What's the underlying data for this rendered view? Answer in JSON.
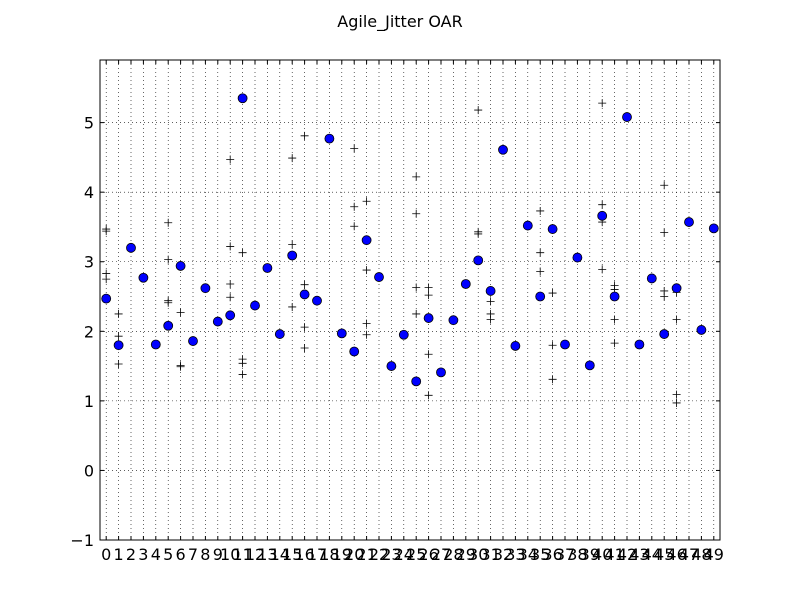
{
  "chart_data": {
    "type": "scatter",
    "title": "Agile_Jitter OAR",
    "xlabel": "",
    "ylabel": "",
    "xlim": [
      -0.5,
      49.5
    ],
    "ylim": [
      -1,
      5.9
    ],
    "grid": true,
    "x_ticks": [
      "0",
      "1",
      "2",
      "3",
      "4",
      "5",
      "6",
      "7",
      "8",
      "9",
      "10",
      "11",
      "12",
      "13",
      "14",
      "15",
      "16",
      "17",
      "18",
      "19",
      "20",
      "21",
      "22",
      "23",
      "24",
      "25",
      "26",
      "27",
      "28",
      "29",
      "30",
      "31",
      "32",
      "33",
      "34",
      "35",
      "36",
      "37",
      "38",
      "39",
      "40",
      "41",
      "42",
      "43",
      "44",
      "45",
      "46",
      "47",
      "48",
      "49"
    ],
    "y_ticks": [
      "−1",
      "0",
      "1",
      "2",
      "3",
      "4",
      "5"
    ],
    "y_tick_values": [
      -1,
      0,
      1,
      2,
      3,
      4,
      5
    ],
    "colors": {
      "points": "#0000ff",
      "point_edge": "#000000",
      "plus": "#000000",
      "grid": "#000000"
    },
    "series": [
      {
        "marker": "circle",
        "values": [
          2.47,
          1.8,
          3.2,
          2.77,
          1.81,
          2.08,
          2.94,
          1.86,
          2.62,
          2.14,
          2.23,
          5.35,
          2.37,
          2.91,
          1.96,
          3.09,
          2.53,
          2.44,
          4.77,
          1.97,
          1.71,
          3.31,
          2.78,
          1.5,
          1.95,
          1.28,
          2.19,
          1.41,
          2.16,
          2.68,
          3.02,
          2.58,
          4.61,
          1.79,
          3.52,
          2.5,
          3.47,
          1.81,
          3.06,
          1.51,
          3.66,
          2.5,
          5.08,
          1.81,
          2.76,
          1.96,
          2.62,
          3.57,
          2.02,
          3.48
        ]
      },
      {
        "marker": "plus",
        "points": [
          [
            0,
            3.47
          ],
          [
            0,
            3.44
          ],
          [
            0,
            2.83
          ],
          [
            0,
            2.75
          ],
          [
            1,
            2.25
          ],
          [
            1,
            1.93
          ],
          [
            1,
            1.53
          ],
          [
            5,
            3.56
          ],
          [
            5,
            3.03
          ],
          [
            5,
            2.44
          ],
          [
            5,
            2.41
          ],
          [
            6,
            2.27
          ],
          [
            6,
            1.51
          ],
          [
            6,
            1.49
          ],
          [
            10,
            4.47
          ],
          [
            10,
            3.22
          ],
          [
            10,
            2.68
          ],
          [
            10,
            2.49
          ],
          [
            11,
            3.13
          ],
          [
            11,
            1.6
          ],
          [
            11,
            1.54
          ],
          [
            11,
            1.38
          ],
          [
            15,
            4.49
          ],
          [
            15,
            3.25
          ],
          [
            15,
            2.35
          ],
          [
            16,
            4.81
          ],
          [
            16,
            2.67
          ],
          [
            16,
            2.06
          ],
          [
            16,
            1.76
          ],
          [
            20,
            4.63
          ],
          [
            20,
            3.79
          ],
          [
            20,
            3.51
          ],
          [
            21,
            3.87
          ],
          [
            21,
            2.88
          ],
          [
            21,
            2.11
          ],
          [
            21,
            1.95
          ],
          [
            25,
            4.22
          ],
          [
            25,
            3.69
          ],
          [
            25,
            2.63
          ],
          [
            25,
            2.25
          ],
          [
            26,
            2.63
          ],
          [
            26,
            2.52
          ],
          [
            26,
            1.67
          ],
          [
            26,
            1.08
          ],
          [
            30,
            5.18
          ],
          [
            30,
            3.43
          ],
          [
            30,
            3.4
          ],
          [
            31,
            2.43
          ],
          [
            31,
            2.25
          ],
          [
            31,
            2.17
          ],
          [
            35,
            3.73
          ],
          [
            35,
            3.13
          ],
          [
            35,
            2.86
          ],
          [
            36,
            2.55
          ],
          [
            36,
            1.8
          ],
          [
            36,
            1.31
          ],
          [
            40,
            5.28
          ],
          [
            40,
            3.82
          ],
          [
            40,
            3.57
          ],
          [
            40,
            2.89
          ],
          [
            41,
            2.66
          ],
          [
            41,
            2.6
          ],
          [
            41,
            2.17
          ],
          [
            41,
            1.83
          ],
          [
            45,
            4.1
          ],
          [
            45,
            3.42
          ],
          [
            45,
            2.58
          ],
          [
            45,
            2.5
          ],
          [
            46,
            2.56
          ],
          [
            46,
            2.17
          ],
          [
            46,
            1.09
          ],
          [
            46,
            0.97
          ]
        ]
      }
    ]
  }
}
